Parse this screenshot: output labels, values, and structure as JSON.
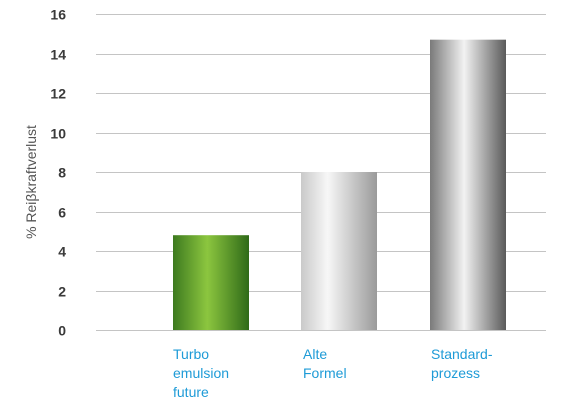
{
  "chart_data": {
    "type": "bar",
    "categories": [
      [
        "Turbo",
        "emulsion",
        "future"
      ],
      [
        "Alte",
        "Formel"
      ],
      [
        "Standard-",
        "prozess"
      ]
    ],
    "values": [
      4.8,
      8.0,
      14.7
    ],
    "ylabel": "% Reiβkraftverlust",
    "xlabel": "",
    "ylim": [
      0,
      16
    ],
    "yticks": [
      "0",
      "2",
      "4",
      "6",
      "8",
      "10",
      "12",
      "14",
      "16"
    ],
    "grid": true,
    "legend": "none",
    "bar_styles": [
      "green-gradient",
      "light-gray-gradient",
      "dark-gray-gradient"
    ]
  },
  "colors": {
    "category_label": "#1e9bd7",
    "tick_label": "#3a3a3a",
    "grid": "#c4c4c4",
    "green_dark": "#3d7a1f",
    "green_light": "#8cc63f",
    "gray_light": "#e6e6e6",
    "gray_dark": "#6a6a6a"
  }
}
